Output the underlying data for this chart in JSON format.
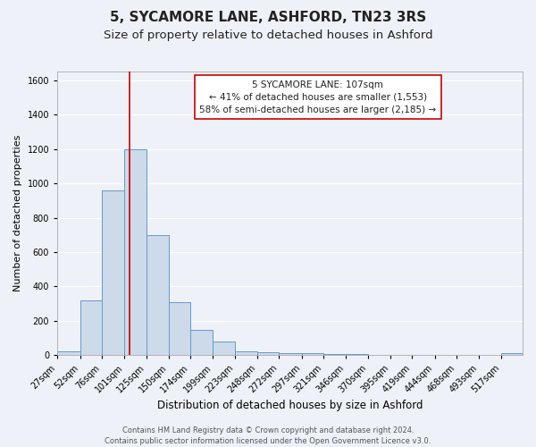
{
  "title": "5, SYCAMORE LANE, ASHFORD, TN23 3RS",
  "subtitle": "Size of property relative to detached houses in Ashford",
  "xlabel": "Distribution of detached houses by size in Ashford",
  "ylabel": "Number of detached properties",
  "bar_color": "#ccdaea",
  "bar_edge_color": "#6699cc",
  "background_color": "#eef2f8",
  "grid_color": "#ffffff",
  "bin_labels": [
    "27sqm",
    "52sqm",
    "76sqm",
    "101sqm",
    "125sqm",
    "150sqm",
    "174sqm",
    "199sqm",
    "223sqm",
    "248sqm",
    "272sqm",
    "297sqm",
    "321sqm",
    "346sqm",
    "370sqm",
    "395sqm",
    "419sqm",
    "444sqm",
    "468sqm",
    "493sqm",
    "517sqm"
  ],
  "bar_heights": [
    25,
    320,
    960,
    1200,
    700,
    310,
    150,
    80,
    25,
    20,
    15,
    10,
    5,
    5,
    2,
    2,
    2,
    2,
    2,
    2,
    10
  ],
  "bin_edges": [
    27,
    52,
    76,
    101,
    125,
    150,
    174,
    199,
    223,
    248,
    272,
    297,
    321,
    346,
    370,
    395,
    419,
    444,
    468,
    493,
    517,
    541
  ],
  "vline_x": 107,
  "vline_color": "#cc0000",
  "ylim": [
    0,
    1650
  ],
  "yticks": [
    0,
    200,
    400,
    600,
    800,
    1000,
    1200,
    1400,
    1600
  ],
  "annotation_title": "5 SYCAMORE LANE: 107sqm",
  "annotation_line1": "← 41% of detached houses are smaller (1,553)",
  "annotation_line2": "58% of semi-detached houses are larger (2,185) →",
  "annotation_box_color": "#ffffff",
  "annotation_box_edge": "#cc0000",
  "footer_line1": "Contains HM Land Registry data © Crown copyright and database right 2024.",
  "footer_line2": "Contains public sector information licensed under the Open Government Licence v3.0.",
  "title_fontsize": 11,
  "subtitle_fontsize": 9.5,
  "xlabel_fontsize": 8.5,
  "ylabel_fontsize": 8,
  "tick_fontsize": 7,
  "annotation_fontsize": 7.5,
  "footer_fontsize": 6
}
